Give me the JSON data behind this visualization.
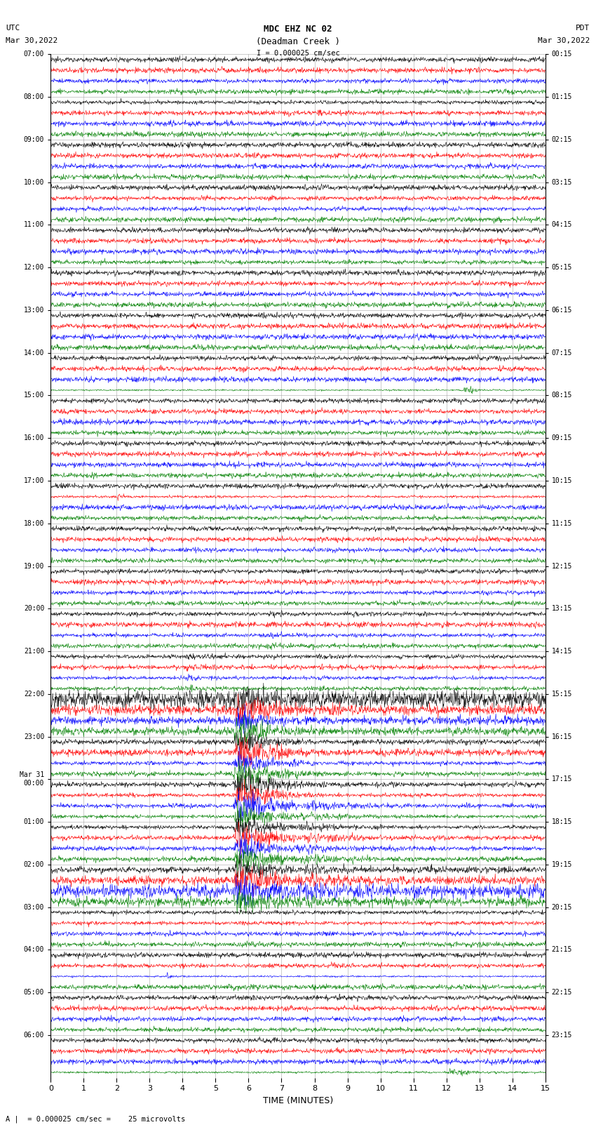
{
  "title_line1": "MDC EHZ NC 02",
  "title_line2": "(Deadman Creek )",
  "title_line3": "I = 0.000025 cm/sec",
  "left_label1": "UTC",
  "left_label2": "Mar 30,2022",
  "right_label1": "PDT",
  "right_label2": "Mar 30,2022",
  "xlabel": "TIME (MINUTES)",
  "footer": "A |  = 0.000025 cm/sec =    25 microvolts",
  "x_min": 0,
  "x_max": 15,
  "colors": [
    "black",
    "red",
    "blue",
    "green"
  ],
  "utc_labels": [
    "07:00",
    "08:00",
    "09:00",
    "10:00",
    "11:00",
    "12:00",
    "13:00",
    "14:00",
    "15:00",
    "16:00",
    "17:00",
    "18:00",
    "19:00",
    "20:00",
    "21:00",
    "22:00",
    "23:00",
    "Mar 31\n00:00",
    "01:00",
    "02:00",
    "03:00",
    "04:00",
    "05:00",
    "06:00"
  ],
  "pdt_labels": [
    "00:15",
    "01:15",
    "02:15",
    "03:15",
    "04:15",
    "05:15",
    "06:15",
    "07:15",
    "08:15",
    "09:15",
    "10:15",
    "11:15",
    "12:15",
    "13:15",
    "14:15",
    "15:15",
    "16:15",
    "17:15",
    "18:15",
    "19:15",
    "20:15",
    "21:15",
    "22:15",
    "23:15"
  ],
  "num_hours": 24,
  "traces_per_hour": 4,
  "background_color": "white",
  "grid_color": "#999999"
}
